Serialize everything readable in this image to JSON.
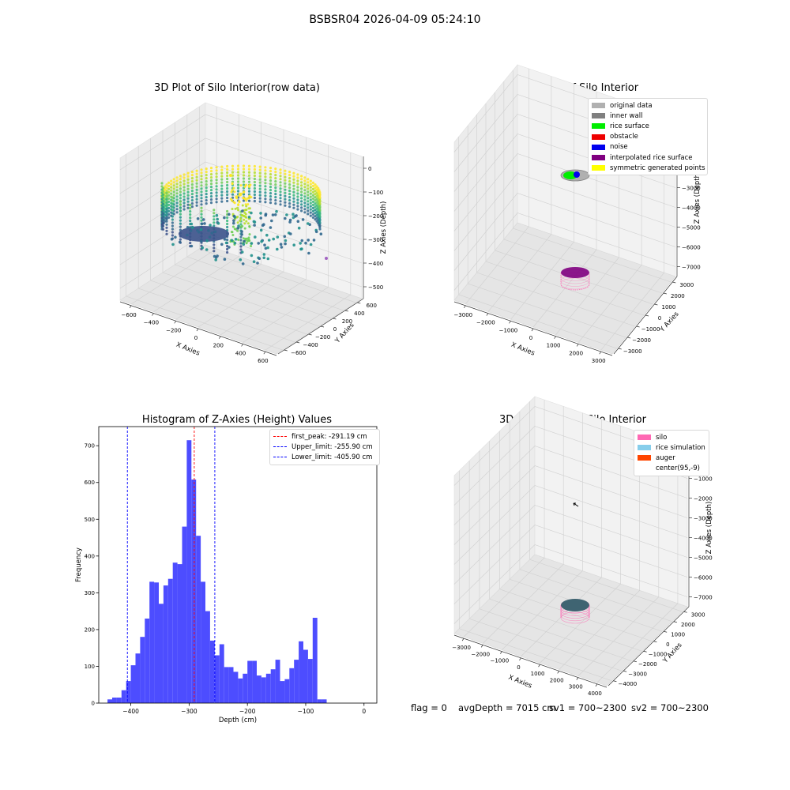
{
  "suptitle": "BSBSR04 2026-04-09 05:24:10",
  "panels": {
    "raw": {
      "title": "3D Plot of Silo Interior(row data)",
      "xlabel": "X Axies",
      "ylabel": "Y Axies",
      "zlabel": "Z Axies (Depth)",
      "xticks": [
        "−600",
        "−400",
        "−200",
        "0",
        "200",
        "400",
        "600"
      ],
      "yticks": [
        "600",
        "400",
        "200",
        "0",
        "−200",
        "−400",
        "−600"
      ],
      "zticks": [
        "0",
        "−100",
        "−200",
        "−300",
        "−400",
        "−500"
      ]
    },
    "classify": {
      "title": "3D classify of Silo Interior",
      "xlabel": "X Axies",
      "ylabel": "Y Axies",
      "zlabel": "Z Axies (Depth)",
      "xticks": [
        "−3000",
        "−2000",
        "−1000",
        "0",
        "1000",
        "2000",
        "3000"
      ],
      "yticks": [
        "3000",
        "2000",
        "1000",
        "0",
        "−1000",
        "−2000",
        "−3000"
      ],
      "zticks": [
        "0",
        "−1000",
        "−2000",
        "−3000",
        "−4000",
        "−5000",
        "−6000",
        "−7000"
      ],
      "legend": [
        {
          "label": "original data",
          "color": "#b0b0b0"
        },
        {
          "label": "inner wall",
          "color": "#808080"
        },
        {
          "label": "rice surface",
          "color": "#00ee00"
        },
        {
          "label": "obstacle",
          "color": "#ee0000"
        },
        {
          "label": "noise",
          "color": "#0000ee"
        },
        {
          "label": "interpolated rice surface",
          "color": "#800080"
        },
        {
          "label": "symmetric generated points",
          "color": "#ffff00"
        }
      ]
    },
    "histogram": {
      "title": "Histogram of Z-Axies (Height) Values",
      "legend": [
        {
          "label": "first_peak: -291.19 cm",
          "color": "#ff0000"
        },
        {
          "label": "Upper_limit: -255.90 cm",
          "color": "#0000ff"
        },
        {
          "label": "Lower_limit: -405.90 cm",
          "color": "#0000ff"
        }
      ]
    },
    "simulation": {
      "title": "3D simulation of Silo Interior",
      "xlabel": "X Axies",
      "ylabel": "Y Axies",
      "zlabel": "Z Axies (Depth)",
      "xticks": [
        "−3000",
        "−2000",
        "−1000",
        "0",
        "1000",
        "2000",
        "3000",
        "4000"
      ],
      "yticks": [
        "3000",
        "2000",
        "1000",
        "0",
        "−1000",
        "−2000",
        "−3000",
        "−4000"
      ],
      "zticks": [
        "0",
        "−1000",
        "−2000",
        "−3000",
        "−4000",
        "−5000",
        "−6000",
        "−7000"
      ],
      "legend": [
        {
          "label": "silo",
          "color": "#ff69b4"
        },
        {
          "label": "rice simulation",
          "color": "#87ceeb"
        },
        {
          "label": "auger",
          "color": "#ff4500"
        },
        {
          "label": "center(95,-9)",
          "color": ""
        }
      ]
    }
  },
  "status": {
    "flag": "flag = 0",
    "avg_depth": "avgDepth = 7015 cm",
    "sv1": "sv1 = 700~2300",
    "sv2": "sv2 = 700~2300"
  },
  "chart_data": [
    {
      "type": "scatter",
      "title": "3D Plot of Silo Interior(row data)",
      "xlabel": "X Axies",
      "ylabel": "Y Axies",
      "zlabel": "Z Axies (Depth)",
      "xlim": [
        -600,
        600
      ],
      "ylim": [
        -600,
        600
      ],
      "zlim": [
        -550,
        0
      ],
      "colormap": "viridis"
    },
    {
      "type": "scatter",
      "title": "3D classify of Silo Interior",
      "xlabel": "X Axies",
      "ylabel": "Y Axies",
      "zlabel": "Z Axies (Depth)",
      "xlim": [
        -3500,
        3500
      ],
      "ylim": [
        -3500,
        3500
      ],
      "zlim": [
        -7500,
        0
      ],
      "series": [
        {
          "name": "original data"
        },
        {
          "name": "inner wall"
        },
        {
          "name": "rice surface"
        },
        {
          "name": "obstacle"
        },
        {
          "name": "noise"
        },
        {
          "name": "interpolated rice surface"
        },
        {
          "name": "symmetric generated points"
        }
      ]
    },
    {
      "type": "bar",
      "title": "Histogram of Z-Axies (Height) Values",
      "xlabel": "Depth (cm)",
      "ylabel": "Frequency",
      "xlim": [
        -455,
        22
      ],
      "ylim": [
        0,
        752
      ],
      "xticks": [
        -400,
        -300,
        -200,
        -100,
        0
      ],
      "yticks": [
        0,
        100,
        200,
        300,
        400,
        500,
        600,
        700
      ],
      "bin_width": 8,
      "bin_starts": [
        -440,
        -432,
        -424,
        -416,
        -408,
        -400,
        -392,
        -384,
        -376,
        -368,
        -360,
        -352,
        -344,
        -336,
        -328,
        -320,
        -312,
        -304,
        -296,
        -288,
        -280,
        -272,
        -264,
        -256,
        -248,
        -240,
        -232,
        -224,
        -216,
        -208,
        -200,
        -192,
        -184,
        -176,
        -168,
        -160,
        -152,
        -144,
        -136,
        -128,
        -120,
        -112,
        -104,
        -96,
        -88,
        -80,
        -72,
        -64,
        -56,
        -48,
        -40
      ],
      "values": [
        10,
        15,
        15,
        35,
        60,
        103,
        135,
        180,
        230,
        330,
        328,
        270,
        320,
        338,
        382,
        378,
        480,
        715,
        608,
        455,
        330,
        250,
        170,
        130,
        160,
        98,
        98,
        85,
        67,
        80,
        115,
        115,
        75,
        70,
        80,
        92,
        118,
        60,
        65,
        95,
        118,
        168,
        145,
        120,
        232,
        10,
        10,
        0,
        0,
        0,
        0
      ],
      "lines": [
        {
          "name": "first_peak: -291.19 cm",
          "x": -291.19,
          "color": "#ff0000"
        },
        {
          "name": "Upper_limit: -255.90 cm",
          "x": -255.9,
          "color": "#0000ff"
        },
        {
          "name": "Lower_limit: -405.90 cm",
          "x": -405.9,
          "color": "#0000ff"
        }
      ],
      "bar_color": "#4d4dff"
    },
    {
      "type": "scatter",
      "title": "3D simulation of Silo Interior",
      "xlabel": "X Axies",
      "ylabel": "Y Axies",
      "zlabel": "Z Axies (Depth)",
      "xlim": [
        -3500,
        4000
      ],
      "ylim": [
        -4000,
        3500
      ],
      "zlim": [
        -7500,
        0
      ],
      "series": [
        {
          "name": "silo"
        },
        {
          "name": "rice simulation"
        },
        {
          "name": "auger"
        }
      ],
      "annotation": "center(95,-9)"
    }
  ]
}
